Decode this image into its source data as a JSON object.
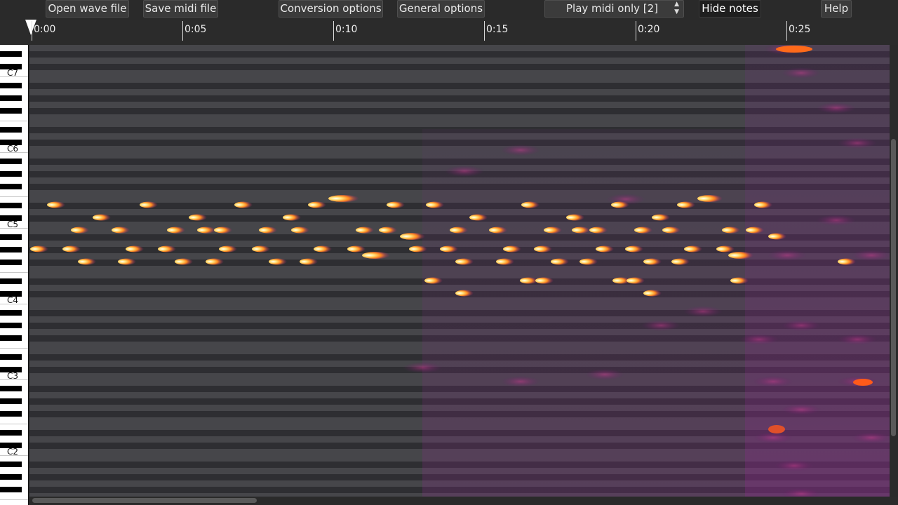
{
  "toolbar": {
    "open_wave_label": "Open wave file",
    "save_midi_label": "Save midi file",
    "conversion_options_label": "Conversion options",
    "general_options_label": "General options",
    "play_mode_value": "Play midi only [2]",
    "hide_notes_label": "Hide notes",
    "help_label": "Help"
  },
  "timeline": {
    "ticks": [
      "0:00",
      "0:05",
      "0:10",
      "0:15",
      "0:20",
      "0:25"
    ]
  },
  "keyboard": {
    "octave_labels": [
      "C7",
      "C6",
      "C5",
      "C4",
      "C3",
      "C2"
    ]
  },
  "colors": {
    "background": "#2b2b2b",
    "roll_light_row": "#47474b",
    "roll_dark_row": "#2f2f33",
    "note_core": "#ffffff",
    "note_hot": "#ffd24a",
    "note_warm": "#ff7a1a",
    "spectrum_faint": "#a02a8c"
  }
}
